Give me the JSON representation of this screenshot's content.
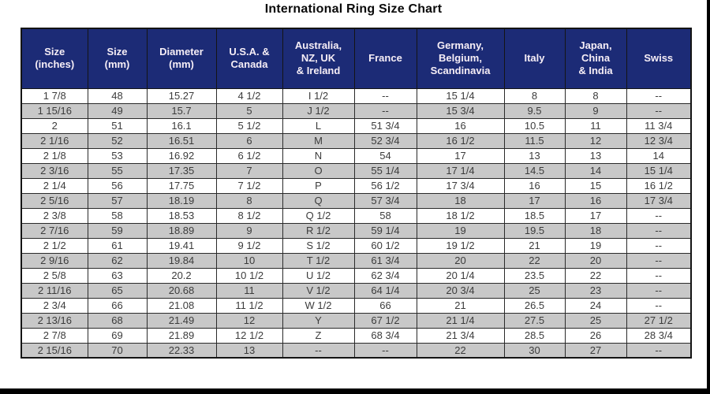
{
  "title": "International Ring Size Chart",
  "colors": {
    "header_bg": "#1c2b76",
    "header_text": "#f6eef6",
    "row_alt_bg": "#c8c8c8",
    "row_bg": "#ffffff",
    "border": "#141414",
    "cell_text": "#3c3c3c"
  },
  "chart_data": {
    "type": "table",
    "title": "International Ring Size Chart",
    "columns": [
      "Size\n(inches)",
      "Size\n(mm)",
      "Diameter\n(mm)",
      "U.S.A. &\nCanada",
      "Australia,\nNZ, UK\n& Ireland",
      "France",
      "Germany,\nBelgium,\nScandinavia",
      "Italy",
      "Japan,\nChina\n& India",
      "Swiss"
    ],
    "rows": [
      [
        "1 7/8",
        "48",
        "15.27",
        "4 1/2",
        "I 1/2",
        "--",
        "15 1/4",
        "8",
        "8",
        "--"
      ],
      [
        "1 15/16",
        "49",
        "15.7",
        "5",
        "J 1/2",
        "--",
        "15 3/4",
        "9.5",
        "9",
        "--"
      ],
      [
        "2",
        "51",
        "16.1",
        "5 1/2",
        "L",
        "51 3/4",
        "16",
        "10.5",
        "11",
        "11 3/4"
      ],
      [
        "2 1/16",
        "52",
        "16.51",
        "6",
        "M",
        "52 3/4",
        "16 1/2",
        "11.5",
        "12",
        "12 3/4"
      ],
      [
        "2 1/8",
        "53",
        "16.92",
        "6 1/2",
        "N",
        "54",
        "17",
        "13",
        "13",
        "14"
      ],
      [
        "2 3/16",
        "55",
        "17.35",
        "7",
        "O",
        "55 1/4",
        "17 1/4",
        "14.5",
        "14",
        "15 1/4"
      ],
      [
        "2 1/4",
        "56",
        "17.75",
        "7 1/2",
        "P",
        "56 1/2",
        "17 3/4",
        "16",
        "15",
        "16 1/2"
      ],
      [
        "2 5/16",
        "57",
        "18.19",
        "8",
        "Q",
        "57 3/4",
        "18",
        "17",
        "16",
        "17 3/4"
      ],
      [
        "2 3/8",
        "58",
        "18.53",
        "8 1/2",
        "Q 1/2",
        "58",
        "18 1/2",
        "18.5",
        "17",
        "--"
      ],
      [
        "2 7/16",
        "59",
        "18.89",
        "9",
        "R 1/2",
        "59 1/4",
        "19",
        "19.5",
        "18",
        "--"
      ],
      [
        "2 1/2",
        "61",
        "19.41",
        "9 1/2",
        "S 1/2",
        "60 1/2",
        "19 1/2",
        "21",
        "19",
        "--"
      ],
      [
        "2 9/16",
        "62",
        "19.84",
        "10",
        "T 1/2",
        "61 3/4",
        "20",
        "22",
        "20",
        "--"
      ],
      [
        "2 5/8",
        "63",
        "20.2",
        "10 1/2",
        "U 1/2",
        "62 3/4",
        "20 1/4",
        "23.5",
        "22",
        "--"
      ],
      [
        "2 11/16",
        "65",
        "20.68",
        "11",
        "V 1/2",
        "64 1/4",
        "20 3/4",
        "25",
        "23",
        "--"
      ],
      [
        "2 3/4",
        "66",
        "21.08",
        "11 1/2",
        "W 1/2",
        "66",
        "21",
        "26.5",
        "24",
        "--"
      ],
      [
        "2 13/16",
        "68",
        "21.49",
        "12",
        "Y",
        "67 1/2",
        "21 1/4",
        "27.5",
        "25",
        "27 1/2"
      ],
      [
        "2 7/8",
        "69",
        "21.89",
        "12 1/2",
        "Z",
        "68 3/4",
        "21 3/4",
        "28.5",
        "26",
        "28 3/4"
      ],
      [
        "2 15/16",
        "70",
        "22.33",
        "13",
        "--",
        "--",
        "22",
        "30",
        "27",
        "--"
      ]
    ]
  }
}
